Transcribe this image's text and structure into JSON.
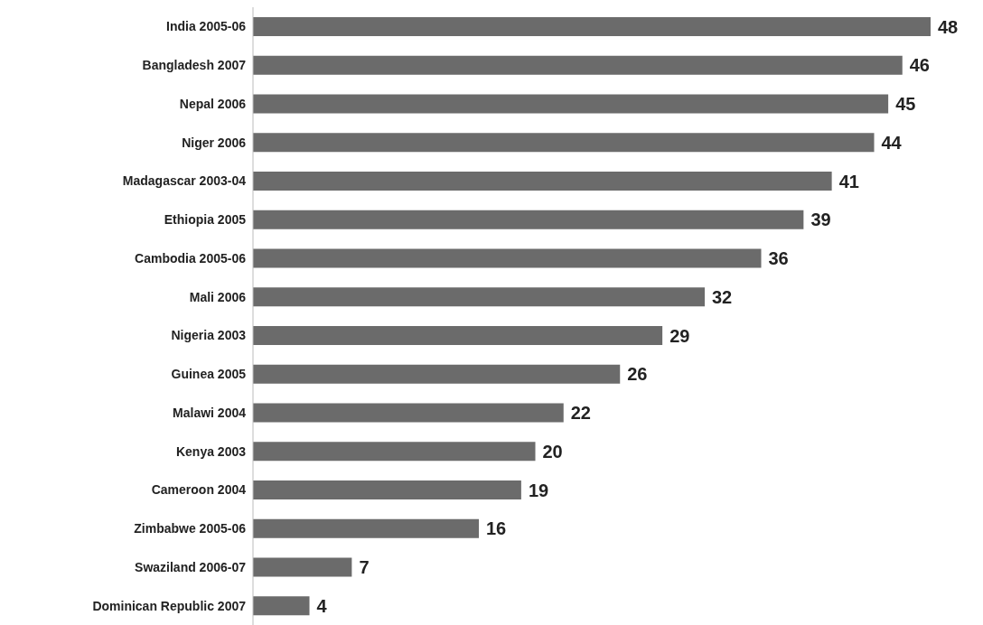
{
  "chart_data": {
    "type": "bar",
    "orientation": "horizontal",
    "data_labels": true,
    "color": "#6b6b6b",
    "categories": [
      "India 2005-06",
      "Bangladesh 2007",
      "Nepal 2006",
      "Niger 2006",
      "Madagascar 2003-04",
      "Ethiopia 2005",
      "Cambodia 2005-06",
      "Mali 2006",
      "Nigeria 2003",
      "Guinea 2005",
      "Malawi 2004",
      "Kenya 2003",
      "Cameroon 2004",
      "Zimbabwe 2005-06",
      "Swaziland 2006-07",
      "Dominican Republic 2007"
    ],
    "values": [
      48,
      46,
      45,
      44,
      41,
      39,
      36,
      32,
      29,
      26,
      22,
      20,
      19,
      16,
      7,
      4
    ]
  }
}
